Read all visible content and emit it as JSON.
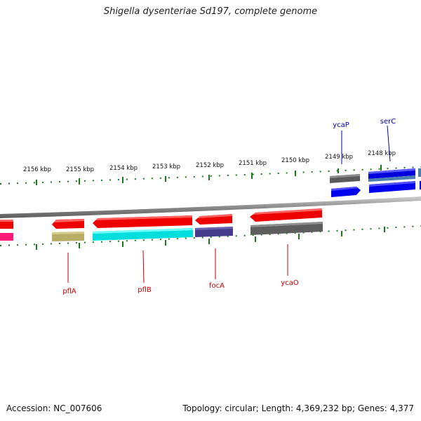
{
  "title": "Shigella dysenteriae Sd197, complete genome",
  "footer": {
    "accession": "Accession: NC_007606",
    "stats": "Topology: circular; Length: 4,369,232 bp; Genes: 4,377"
  },
  "colors": {
    "backbone": "#7f7f7f",
    "tick": "#1a7a1a",
    "label_red": "#cc0000",
    "label_blue": "#0000aa"
  },
  "scale_labels": [
    "2156 kbp",
    "2155 kbp",
    "2154 kbp",
    "2153 kbp",
    "2152 kbp",
    "2151 kbp",
    "2150 kbp",
    "2149 kbp",
    "2148 kbp"
  ],
  "gene_labels": [
    {
      "name": "pflA",
      "color": "#cc0000"
    },
    {
      "name": "pflB",
      "color": "#cc0000"
    },
    {
      "name": "focA",
      "color": "#cc0000"
    },
    {
      "name": "ycaO",
      "color": "#cc0000"
    },
    {
      "name": "ycaP",
      "color": "#0000aa"
    },
    {
      "name": "serC",
      "color": "#0000aa"
    }
  ]
}
